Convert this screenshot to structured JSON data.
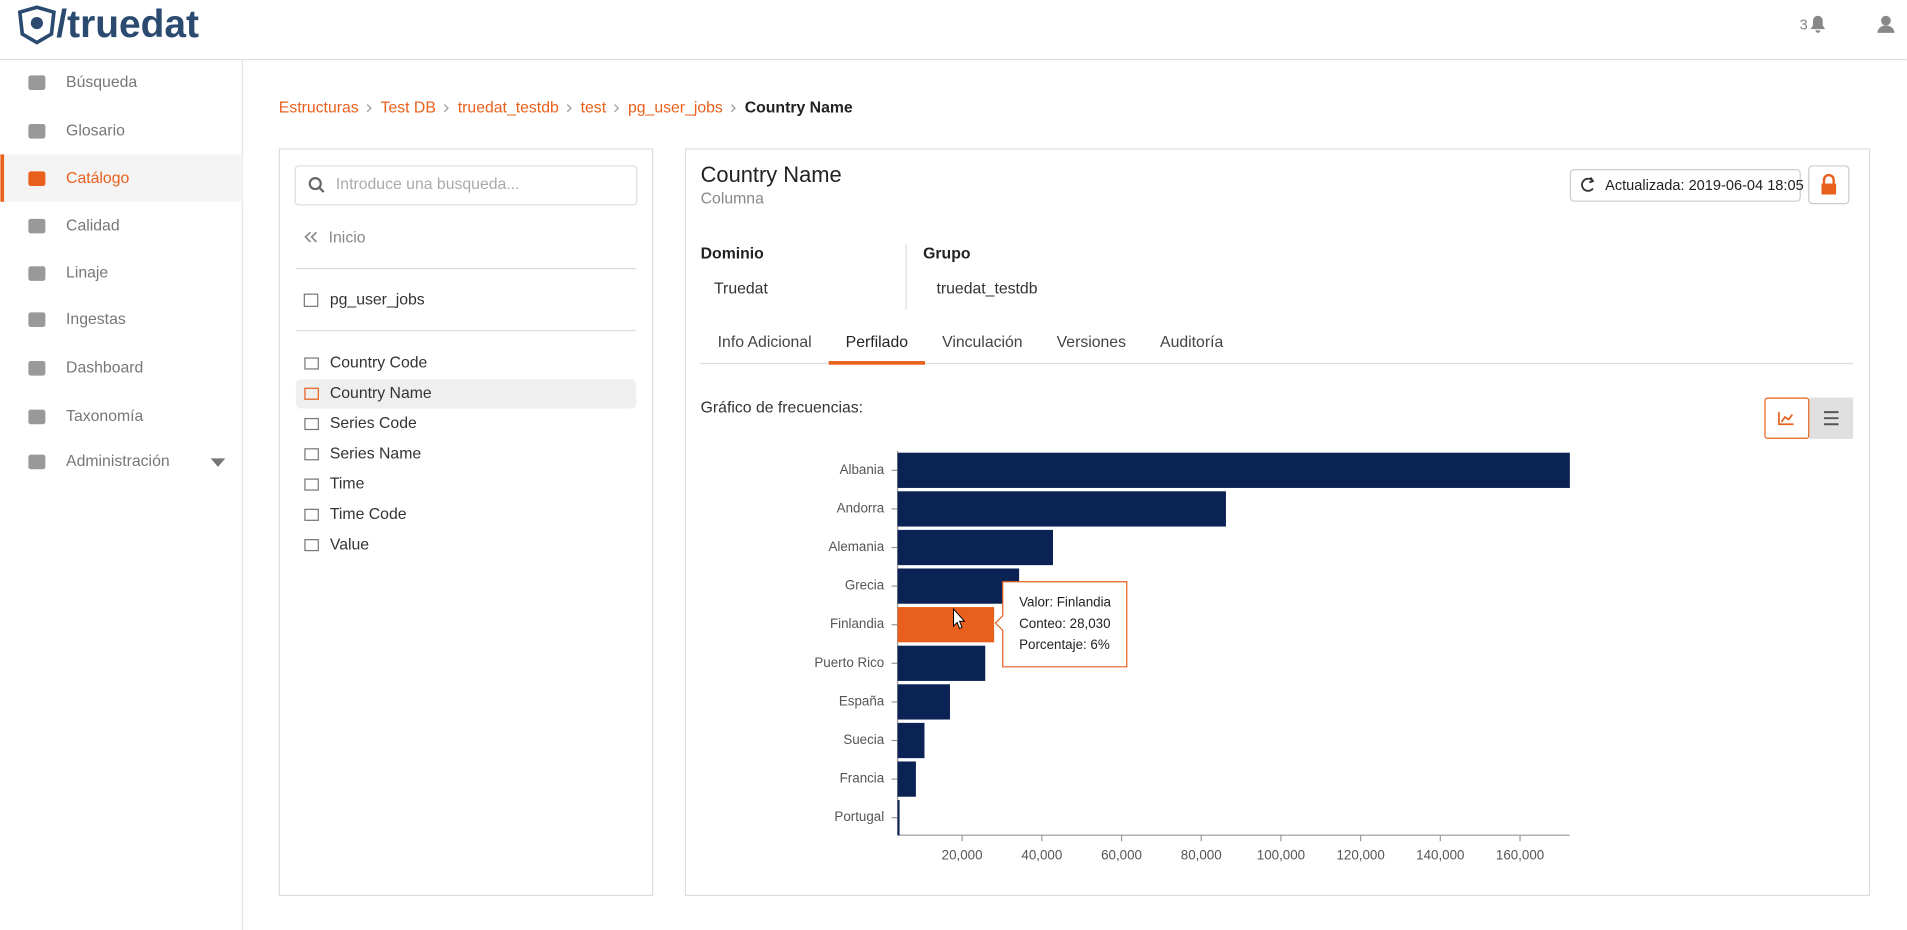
{
  "header": {
    "logo": "/truedat",
    "notifications": "3"
  },
  "sidebar": {
    "items": [
      "Búsqueda",
      "Glosario",
      "Catálogo",
      "Calidad",
      "Linaje",
      "Ingestas",
      "Dashboard",
      "Taxonomía",
      "Administración"
    ]
  },
  "breadcrumbs": [
    "Estructuras",
    "Test DB",
    "truedat_testdb",
    "test",
    "pg_user_jobs",
    "Country Name"
  ],
  "tree": {
    "search_placeholder": "Introduce una busqueda...",
    "back": "Inicio",
    "parent": "pg_user_jobs",
    "children": [
      "Country Code",
      "Country Name",
      "Series Code",
      "Series Name",
      "Time",
      "Time Code",
      "Value"
    ]
  },
  "detail": {
    "title": "Country Name",
    "subtitle": "Columna",
    "refresh": "Actualizada: 2019-06-04 18:05",
    "fields": [
      {
        "label": "Dominio",
        "value": "Truedat"
      },
      {
        "label": "Grupo",
        "value": "truedat_testdb"
      }
    ],
    "tabs": [
      "Info Adicional",
      "Perfilado",
      "Vinculación",
      "Versiones",
      "Auditoría"
    ],
    "chart_heading": "Gráfico de frecuencias:"
  },
  "chart_data": {
    "type": "bar",
    "orientation": "horizontal",
    "categories": [
      "Albania",
      "Andorra",
      "Alemania",
      "Grecia",
      "Finlandia",
      "Puerto Rico",
      "España",
      "Suecia",
      "Francia",
      "Portugal"
    ],
    "values": [
      172500,
      86200,
      42800,
      34300,
      28030,
      25800,
      16950,
      10550,
      8400,
      4300
    ],
    "bar_colors": [
      "#0b2255",
      "#0b2255",
      "#0b2255",
      "#0b2255",
      "#e8601c",
      "#0b2255",
      "#0b2255",
      "#0b2255",
      "#0b2255",
      "#0b2255"
    ],
    "xlim": [
      3800,
      172500
    ],
    "xticks": [
      {
        "value": 20000,
        "label": "20,000"
      },
      {
        "value": 40000,
        "label": "40,000"
      },
      {
        "value": 60000,
        "label": "60,000"
      },
      {
        "value": 80000,
        "label": "80,000"
      },
      {
        "value": 100000,
        "label": "100,000"
      },
      {
        "value": 120000,
        "label": "120,000"
      },
      {
        "value": 140000,
        "label": "140,000"
      },
      {
        "value": 160000,
        "label": "160,000"
      }
    ],
    "tooltip": [
      "Valor: Finlandia",
      "Conteo: 28,030",
      "Porcentaje: 6%"
    ]
  }
}
